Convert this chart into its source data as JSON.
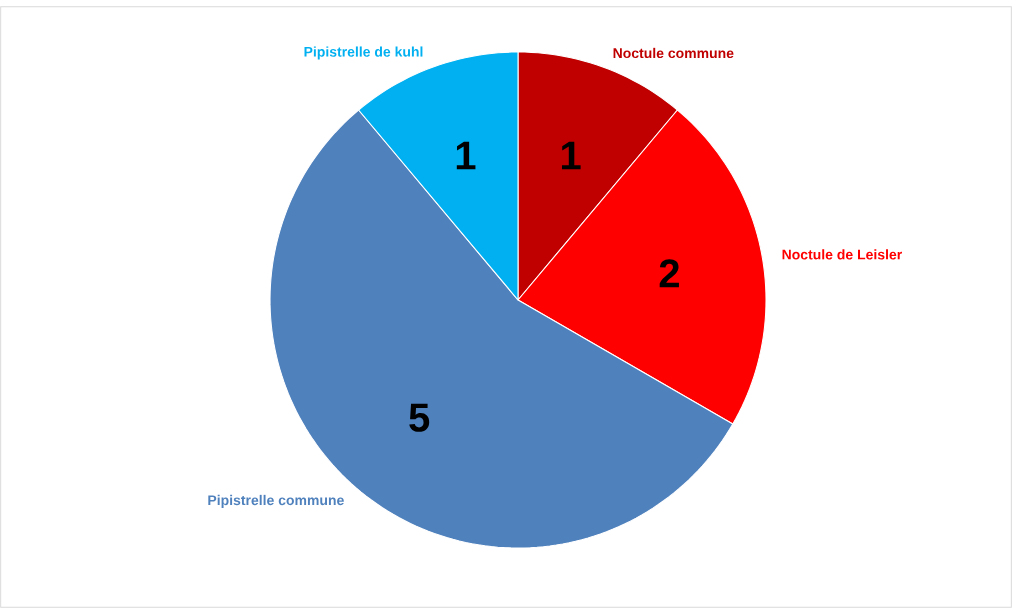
{
  "chart_data": {
    "type": "pie",
    "categories": [
      "Noctule commune",
      "Noctule de Leisler",
      "Pipistrelle commune",
      "Pipistrelle de kuhl"
    ],
    "values": [
      1,
      2,
      5,
      1
    ],
    "colors": [
      "#c00000",
      "#ff0000",
      "#4f81bd",
      "#00b0f0"
    ],
    "data_labels": true
  }
}
